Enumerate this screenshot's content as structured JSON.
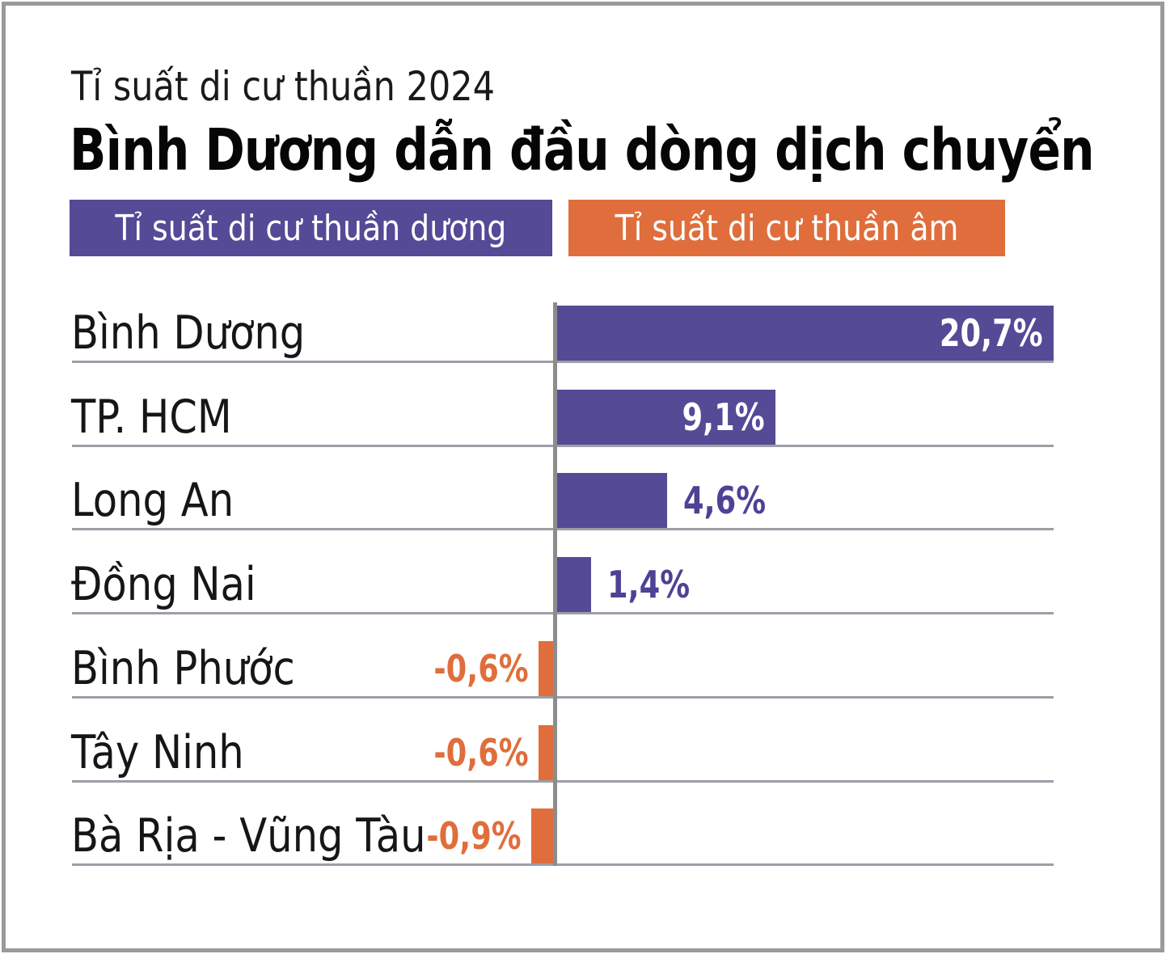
{
  "header": {
    "kicker": "Tỉ suất di cư thuần 2024",
    "title": "Bình Dương dẫn đầu dòng dịch chuyển"
  },
  "legend": [
    {
      "label": "Tỉ suất di cư thuần dương",
      "color": "#544A96",
      "meaning": "positive"
    },
    {
      "label": "Tỉ suất di cư thuần âm",
      "color": "#DF6E3C",
      "meaning": "negative"
    }
  ],
  "colors": {
    "positive_bar": "#544A96",
    "negative_bar": "#DF6E3C",
    "positive_value_text": "#4D4294",
    "negative_value_text": "#DF6E3C",
    "value_inside_text": "#FFFFFF",
    "category_text": "#161616",
    "gridline": "#9AA0A6",
    "axis": "#8C8C8C",
    "frame_border": "#9A9A9A"
  },
  "chart_data": {
    "type": "bar",
    "orientation": "horizontal",
    "title": "Bình Dương dẫn đầu dòng dịch chuyển",
    "subtitle": "Tỉ suất di cư thuần 2024",
    "unit": "%",
    "categories": [
      "Bình Dương",
      "TP. HCM",
      "Long An",
      "Đồng Nai",
      "Bình Phước",
      "Tây Ninh",
      "Bà Rịa - Vũng Tàu"
    ],
    "values": [
      20.7,
      9.1,
      4.6,
      1.4,
      -0.6,
      -0.6,
      -0.9
    ],
    "value_labels": [
      "20,7%",
      "9,1%",
      "4,6%",
      "1,4%",
      "-0,6%",
      "-0,6%",
      "-0,9%"
    ],
    "xlim": [
      -0.9,
      20.7
    ],
    "grid": "row-separator-lines",
    "legend_position": "top",
    "series": [
      {
        "name": "Tỉ suất di cư thuần dương",
        "color": "#544A96",
        "applies_to": "values >= 0"
      },
      {
        "name": "Tỉ suất di cư thuần âm",
        "color": "#DF6E3C",
        "applies_to": "values < 0"
      }
    ]
  }
}
